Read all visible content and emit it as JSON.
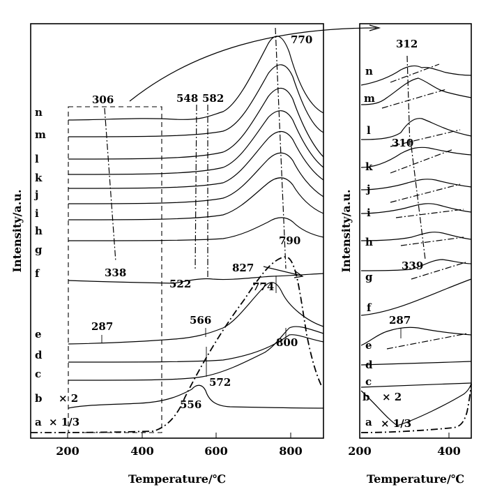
{
  "chart_data": [
    {
      "type": "line",
      "panel": "main",
      "xlabel": "Temperature/℃",
      "ylabel": "Intensity/a.u.",
      "xlim": [
        100,
        900
      ],
      "xticks": [
        200,
        400,
        600,
        800
      ],
      "series": [
        {
          "name": "n",
          "peaks": [
            306,
            548,
            582,
            770
          ]
        },
        {
          "name": "m",
          "peaks": [
            770
          ]
        },
        {
          "name": "l",
          "peaks": [
            775
          ]
        },
        {
          "name": "k",
          "peaks": [
            780
          ]
        },
        {
          "name": "j",
          "peaks": [
            780
          ]
        },
        {
          "name": "i",
          "peaks": [
            785
          ]
        },
        {
          "name": "h",
          "peaks": [
            785
          ]
        },
        {
          "name": "g",
          "peaks": [
            790
          ]
        },
        {
          "name": "f",
          "peaks": [
            338,
            522,
            827
          ]
        },
        {
          "name": "e",
          "peaks": [
            287,
            566,
            774
          ]
        },
        {
          "name": "d",
          "peaks": [
            790
          ]
        },
        {
          "name": "c",
          "peaks": [
            572,
            800
          ]
        },
        {
          "name": "b",
          "multiplier": "× 2",
          "peaks": [
            556
          ]
        },
        {
          "name": "a",
          "multiplier": "× 1/3",
          "peaks": [
            790
          ]
        }
      ],
      "annotations": [
        "306",
        "548",
        "582",
        "770",
        "338",
        "522",
        "790",
        "827",
        "774",
        "287",
        "566",
        "800",
        "572",
        "556"
      ]
    },
    {
      "type": "line",
      "panel": "inset",
      "xlabel": "Temperature/℃",
      "ylabel": "Intensity/a.u.",
      "xlim": [
        200,
        450
      ],
      "xticks": [
        200,
        400
      ],
      "series": [
        {
          "name": "n",
          "peaks": [
            312
          ]
        },
        {
          "name": "m",
          "peaks": [
            315
          ]
        },
        {
          "name": "l",
          "peaks": [
            318
          ]
        },
        {
          "name": "k",
          "peaks": [
            310
          ]
        },
        {
          "name": "j",
          "peaks": [
            320
          ]
        },
        {
          "name": "i",
          "peaks": [
            325
          ]
        },
        {
          "name": "h",
          "peaks": [
            330
          ]
        },
        {
          "name": "g",
          "peaks": [
            339
          ]
        },
        {
          "name": "f",
          "peaks": []
        },
        {
          "name": "e",
          "peaks": [
            287
          ]
        },
        {
          "name": "d",
          "peaks": []
        },
        {
          "name": "c",
          "peaks": []
        },
        {
          "name": "b",
          "multiplier": "× 2",
          "peaks": []
        },
        {
          "name": "a",
          "multiplier": "× 1/3",
          "peaks": []
        }
      ],
      "annotations": [
        "312",
        "310",
        "339",
        "287"
      ]
    }
  ]
}
